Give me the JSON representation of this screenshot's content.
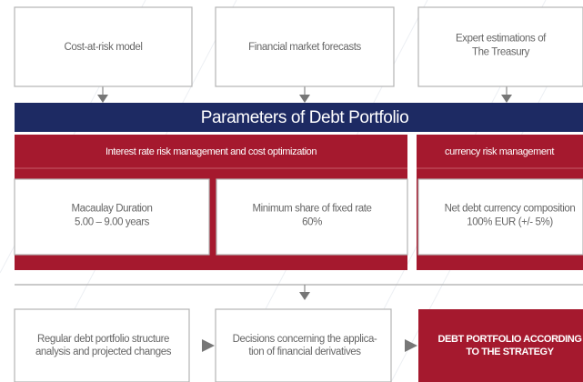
{
  "top_boxes": [
    {
      "lines": [
        "Cost-at-risk model"
      ]
    },
    {
      "lines": [
        "Financial market forecasts"
      ]
    },
    {
      "lines": [
        "Expert estimations of",
        "The Treasury"
      ]
    }
  ],
  "header": "Parameters of Debt Portfolio",
  "sections": [
    {
      "title": "Interest rate risk management and cost optimization"
    },
    {
      "title": "currency risk management"
    }
  ],
  "parameters": [
    {
      "lines": [
        "Macaulay Duration",
        "5.00 – 9.00 years"
      ]
    },
    {
      "lines": [
        "Minimum share of fixed rate",
        "60%"
      ]
    },
    {
      "lines": [
        "Net debt currency composition",
        "100% EUR (+/- 5%)"
      ]
    }
  ],
  "bottom_boxes": [
    {
      "lines": [
        "Regular debt portfolio structure",
        "analysis and projected changes"
      ]
    },
    {
      "lines": [
        "Decisions concerning the applica-",
        "tion of financial derivatives"
      ]
    },
    {
      "lines": [
        "DEBT PORTFOLIO ACCORDING",
        "TO THE STRATEGY"
      ]
    }
  ]
}
